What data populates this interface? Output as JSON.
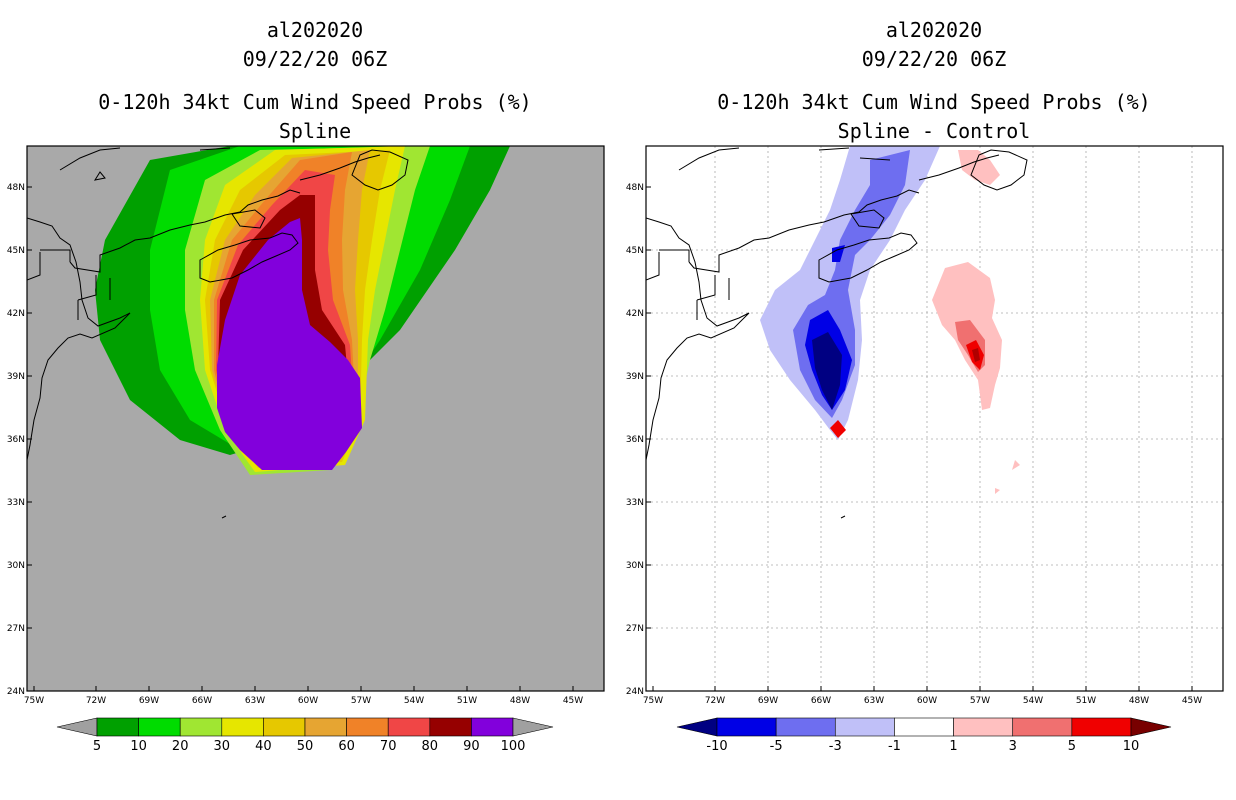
{
  "left_panel": {
    "storm_id": "al202020",
    "datetime": "09/22/20 06Z",
    "product": "0-120h 34kt Cum Wind Speed Probs (%)",
    "variant": "Spline",
    "lat_ticks": [
      "48N",
      "45N",
      "42N",
      "39N",
      "36N",
      "33N",
      "30N",
      "27N",
      "24N"
    ],
    "lon_ticks": [
      "75W",
      "72W",
      "69W",
      "66W",
      "63W",
      "60W",
      "57W",
      "54W",
      "51W",
      "48W",
      "45W"
    ],
    "colorbar": {
      "labels": [
        "5",
        "10",
        "20",
        "30",
        "40",
        "50",
        "60",
        "70",
        "80",
        "90",
        "100"
      ],
      "colors": [
        "#00a000",
        "#00dc00",
        "#a0e632",
        "#e6e600",
        "#e6c800",
        "#e6a532",
        "#f08228",
        "#f04646",
        "#960000",
        "#8200dc"
      ],
      "under_color": "#a0a0a0",
      "over_color": "#a0a0a0"
    },
    "background_color": "#a9a9a9"
  },
  "right_panel": {
    "storm_id": "al202020",
    "datetime": "09/22/20 06Z",
    "product": "0-120h 34kt Cum Wind Speed Probs (%)",
    "variant": "Spline - Control",
    "lat_ticks": [
      "48N",
      "45N",
      "42N",
      "39N",
      "36N",
      "33N",
      "30N",
      "27N",
      "24N"
    ],
    "lon_ticks": [
      "75W",
      "72W",
      "69W",
      "66W",
      "63W",
      "60W",
      "57W",
      "54W",
      "51W",
      "48W",
      "45W"
    ],
    "colorbar": {
      "labels": [
        "-10",
        "-5",
        "-3",
        "-1",
        "1",
        "3",
        "5",
        "10"
      ],
      "colors": [
        "#0000e6",
        "#6e6ef0",
        "#c0c0f8",
        "#ffffff",
        "#ffc0c0",
        "#f07070",
        "#f00000"
      ],
      "under_color": "#000082",
      "over_color": "#780000"
    }
  }
}
